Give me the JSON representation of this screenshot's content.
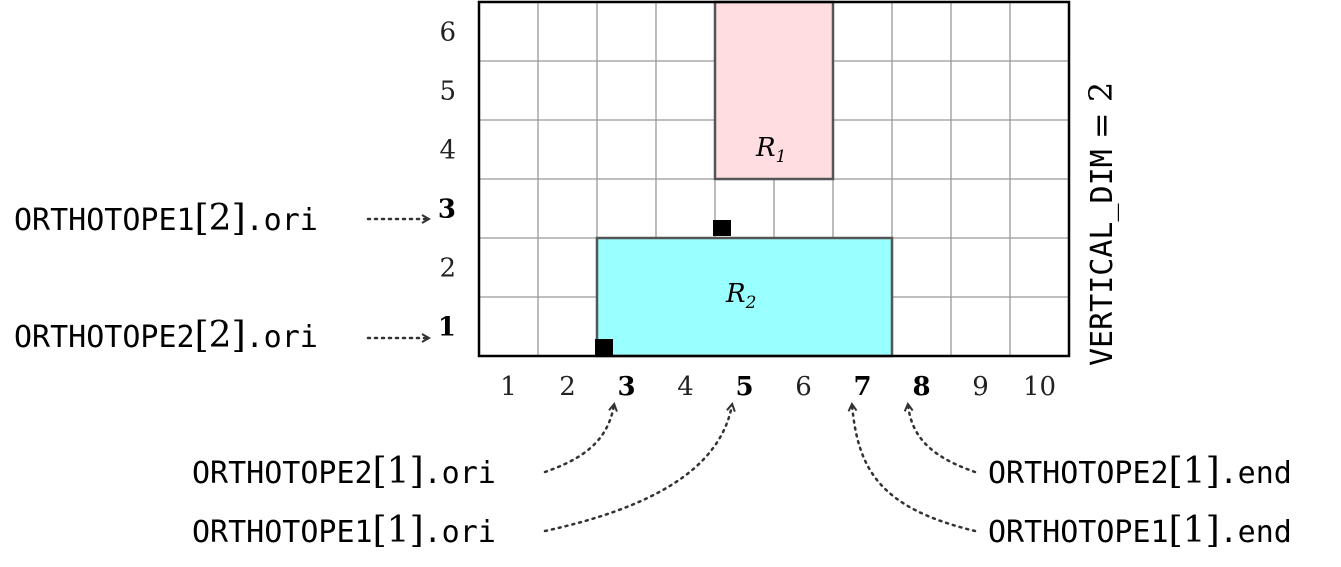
{
  "grid": {
    "x_min": 0,
    "x_max": 10,
    "y_min": 0,
    "y_max": 6
  },
  "x_ticks": [
    {
      "v": 1,
      "label": "1",
      "bold": false
    },
    {
      "v": 2,
      "label": "2",
      "bold": false
    },
    {
      "v": 3,
      "label": "3",
      "bold": true
    },
    {
      "v": 4,
      "label": "4",
      "bold": false
    },
    {
      "v": 5,
      "label": "5",
      "bold": true
    },
    {
      "v": 6,
      "label": "6",
      "bold": false
    },
    {
      "v": 7,
      "label": "7",
      "bold": true
    },
    {
      "v": 8,
      "label": "8",
      "bold": true
    },
    {
      "v": 9,
      "label": "9",
      "bold": false
    },
    {
      "v": 10,
      "label": "10",
      "bold": false
    }
  ],
  "y_ticks": [
    {
      "v": 1,
      "label": "1",
      "bold": true
    },
    {
      "v": 2,
      "label": "2",
      "bold": false
    },
    {
      "v": 3,
      "label": "3",
      "bold": true
    },
    {
      "v": 4,
      "label": "4",
      "bold": false
    },
    {
      "v": 5,
      "label": "5",
      "bold": false
    },
    {
      "v": 6,
      "label": "6",
      "bold": false
    }
  ],
  "rectangles": [
    {
      "name": "R",
      "sub": "1",
      "x0": 4,
      "x1": 6,
      "y0": 3,
      "y1": 6,
      "color": "#ffdde0"
    },
    {
      "name": "R",
      "sub": "2",
      "x0": 2,
      "x1": 7,
      "y0": 0,
      "y1": 2,
      "color": "#99ffff"
    }
  ],
  "vertical_label": {
    "mono": "VERTICAL_DIM",
    "rest": " = 2"
  },
  "labels": {
    "o1_2_ori": {
      "pre": "ORTHOTOPE1",
      "bracket": "[2]",
      "post": ".ori"
    },
    "o2_2_ori": {
      "pre": "ORTHOTOPE2",
      "bracket": "[2]",
      "post": ".ori"
    },
    "o2_1_ori": {
      "pre": "ORTHOTOPE2",
      "bracket": "[1]",
      "post": ".ori"
    },
    "o1_1_ori": {
      "pre": "ORTHOTOPE1",
      "bracket": "[1]",
      "post": ".ori"
    },
    "o2_1_end": {
      "pre": "ORTHOTOPE2",
      "bracket": "[1]",
      "post": ".end"
    },
    "o1_1_end": {
      "pre": "ORTHOTOPE1",
      "bracket": "[1]",
      "post": ".end"
    }
  }
}
